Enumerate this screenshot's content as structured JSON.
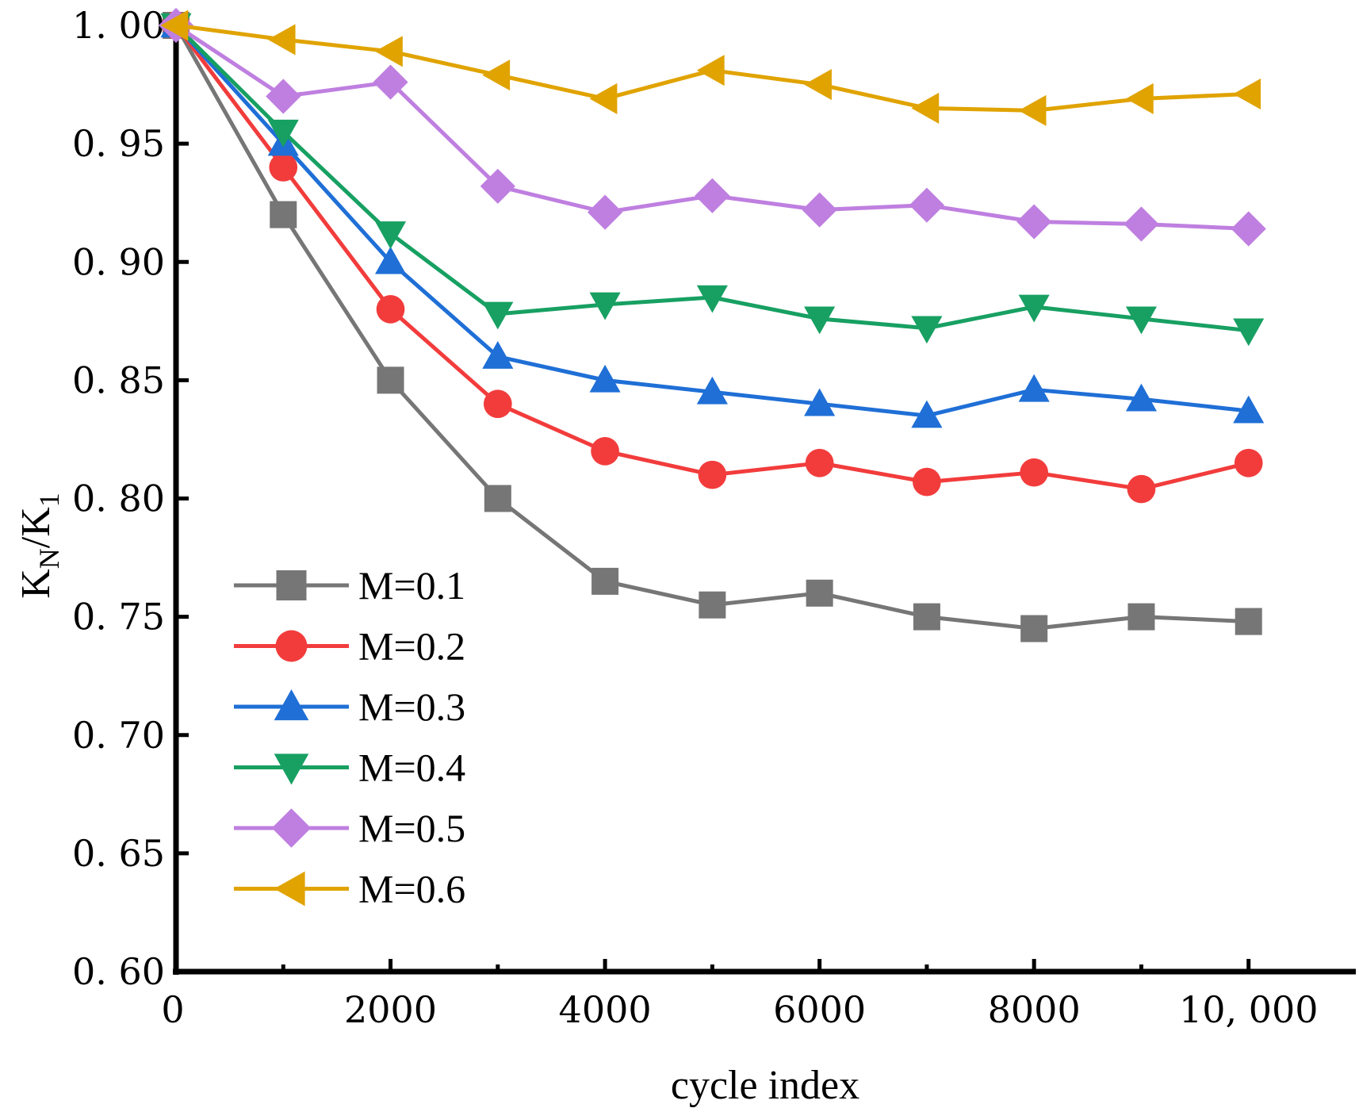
{
  "chart_data": {
    "type": "line",
    "title": "",
    "xlabel": "cycle index",
    "ylabel_main": "K",
    "ylabel_sub_n": "N",
    "ylabel_sep": "/K",
    "ylabel_sub_1": "1",
    "xlim": [
      0,
      11000
    ],
    "ylim": [
      0.6,
      1.0
    ],
    "xticks": [
      0,
      2000,
      4000,
      6000,
      8000,
      10000
    ],
    "xtick_labels": [
      "0",
      "2000",
      "4000",
      "6000",
      "8000",
      "10, 000"
    ],
    "xminor_ticks": [
      1000,
      3000,
      5000,
      7000,
      9000
    ],
    "yticks": [
      0.6,
      0.65,
      0.7,
      0.75,
      0.8,
      0.85,
      0.9,
      0.95,
      1.0
    ],
    "ytick_labels": [
      "0. 60",
      "0. 65",
      "0. 70",
      "0. 75",
      "0. 80",
      "0. 85",
      "0. 90",
      "0. 95",
      "1. 00"
    ],
    "grid": false,
    "legend_position": "bottom-left",
    "x": [
      0,
      1000,
      2000,
      3000,
      4000,
      5000,
      6000,
      7000,
      8000,
      9000,
      10000
    ],
    "series": [
      {
        "name": "M=0.1",
        "color": "#767676",
        "marker": "square",
        "values": [
          1.0,
          0.92,
          0.85,
          0.8,
          0.765,
          0.755,
          0.76,
          0.75,
          0.745,
          0.75,
          0.748
        ]
      },
      {
        "name": "M=0.2",
        "color": "#f23c3c",
        "marker": "circle",
        "values": [
          1.0,
          0.94,
          0.88,
          0.84,
          0.82,
          0.81,
          0.815,
          0.807,
          0.811,
          0.804,
          0.815
        ]
      },
      {
        "name": "M=0.3",
        "color": "#1f6fd6",
        "marker": "triangle-up",
        "values": [
          1.0,
          0.95,
          0.9,
          0.86,
          0.85,
          0.845,
          0.84,
          0.835,
          0.846,
          0.842,
          0.837
        ]
      },
      {
        "name": "M=0.4",
        "color": "#17a062",
        "marker": "triangle-down",
        "values": [
          1.0,
          0.955,
          0.912,
          0.878,
          0.882,
          0.885,
          0.876,
          0.872,
          0.881,
          0.876,
          0.871
        ]
      },
      {
        "name": "M=0.5",
        "color": "#bf7fe0",
        "marker": "diamond",
        "values": [
          1.0,
          0.97,
          0.976,
          0.932,
          0.921,
          0.928,
          0.922,
          0.924,
          0.917,
          0.916,
          0.914
        ]
      },
      {
        "name": "M=0.6",
        "color": "#e0a300",
        "marker": "triangle-left",
        "values": [
          1.0,
          0.994,
          0.989,
          0.979,
          0.969,
          0.981,
          0.975,
          0.965,
          0.964,
          0.969,
          0.971
        ]
      }
    ]
  }
}
